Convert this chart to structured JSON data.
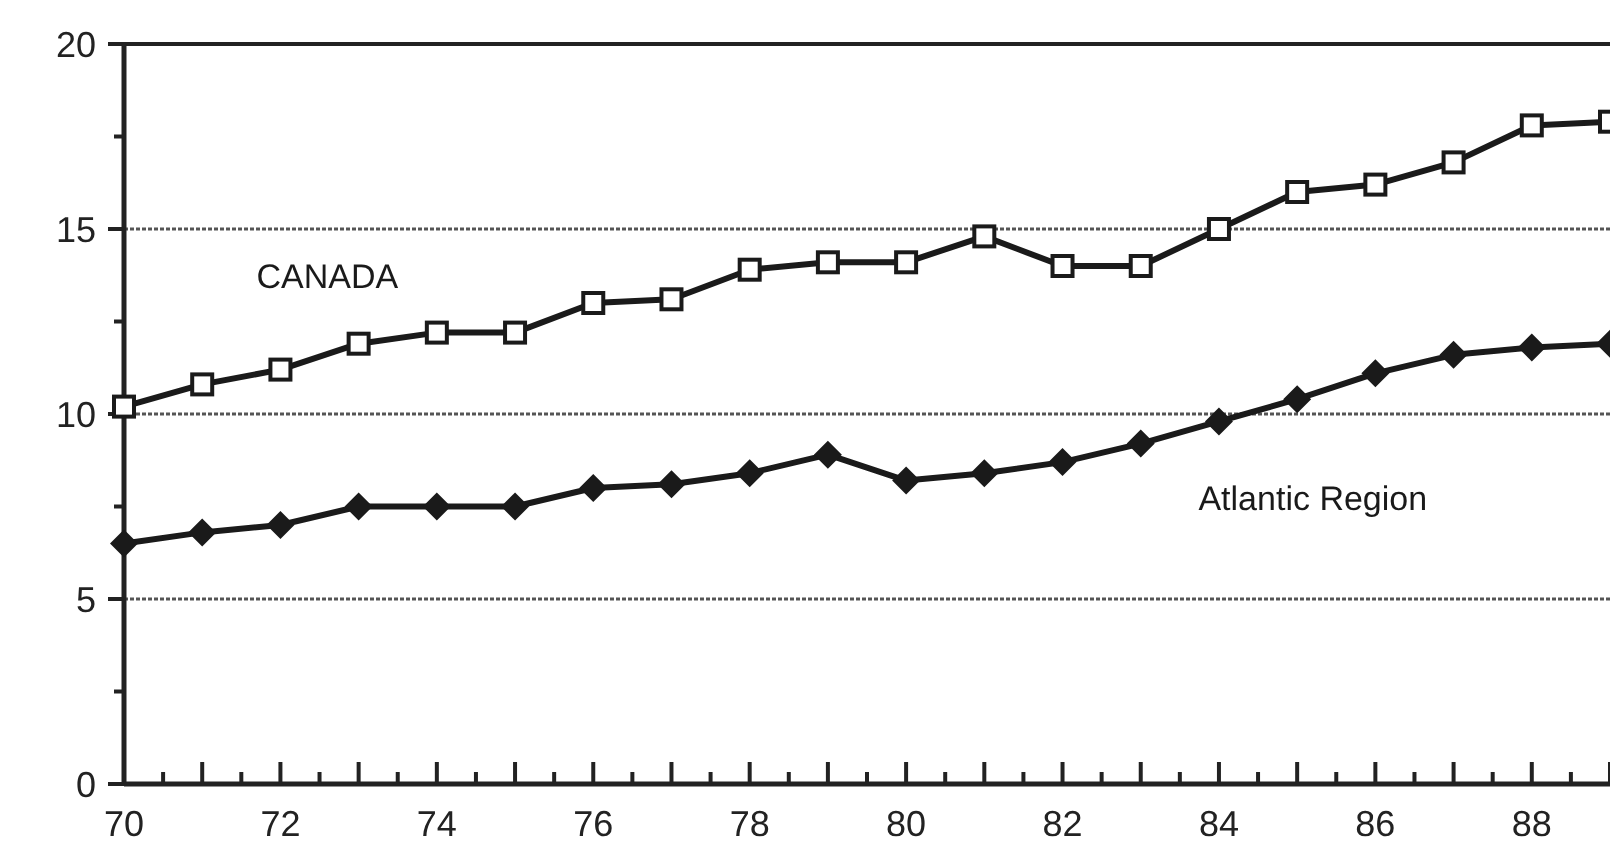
{
  "chart_data": {
    "type": "line",
    "x": [
      70,
      71,
      72,
      73,
      74,
      75,
      76,
      77,
      78,
      79,
      80,
      81,
      82,
      83,
      84,
      85,
      86,
      87,
      88,
      89
    ],
    "series": [
      {
        "name": "CANADA",
        "color": "#1a1a1a",
        "marker": "square",
        "values": [
          10.2,
          10.8,
          11.2,
          11.9,
          12.2,
          12.2,
          13.0,
          13.1,
          13.9,
          14.1,
          14.1,
          14.8,
          14.0,
          14.0,
          15.0,
          16.0,
          16.2,
          16.8,
          17.8,
          17.9
        ]
      },
      {
        "name": "Atlantic Region",
        "color": "#1a1a1a",
        "marker": "diamond",
        "values": [
          6.5,
          6.8,
          7.0,
          7.5,
          7.5,
          7.5,
          8.0,
          8.1,
          8.4,
          8.9,
          8.2,
          8.4,
          8.7,
          9.2,
          9.8,
          10.4,
          11.1,
          11.6,
          11.8,
          11.9
        ]
      }
    ],
    "xlim": [
      70,
      89
    ],
    "xticks": [
      70,
      {
        "value": 70.5,
        "label": null
      },
      {
        "value": 71,
        "label": null
      },
      {
        "value": 71.5,
        "label": null
      },
      72,
      {
        "value": 72.5,
        "label": null
      },
      {
        "value": 73,
        "label": null
      },
      {
        "value": 73.5,
        "label": null
      },
      74,
      {
        "value": 74.5,
        "label": null
      },
      {
        "value": 75,
        "label": null
      },
      {
        "value": 75.5,
        "label": null
      },
      76,
      {
        "value": 76.5,
        "label": null
      },
      {
        "value": 77,
        "label": null
      },
      {
        "value": 77.5,
        "label": null
      },
      78,
      {
        "value": 78.5,
        "label": null
      },
      {
        "value": 79,
        "label": null
      },
      {
        "value": 79.5,
        "label": null
      },
      80,
      {
        "value": 80.5,
        "label": null
      },
      {
        "value": 81,
        "label": null
      },
      {
        "value": 81.5,
        "label": null
      },
      82,
      {
        "value": 82.5,
        "label": null
      },
      {
        "value": 83,
        "label": null
      },
      {
        "value": 83.5,
        "label": null
      },
      84,
      {
        "value": 84.5,
        "label": null
      },
      {
        "value": 85,
        "label": null
      },
      {
        "value": 85.5,
        "label": null
      },
      86,
      {
        "value": 86.5,
        "label": null
      },
      {
        "value": 87,
        "label": null
      },
      {
        "value": 87.5,
        "label": null
      },
      88,
      {
        "value": 88.5,
        "label": null
      },
      {
        "value": 89,
        "label": null
      }
    ],
    "ylim": [
      0,
      20
    ],
    "yticks": [
      0,
      {
        "value": 2.5,
        "label": null
      },
      5,
      {
        "value": 7.5,
        "label": null
      },
      10,
      {
        "value": 12.5,
        "label": null
      },
      15,
      {
        "value": 17.5,
        "label": null
      },
      20
    ],
    "grid": "y",
    "line_style": "solid"
  }
}
